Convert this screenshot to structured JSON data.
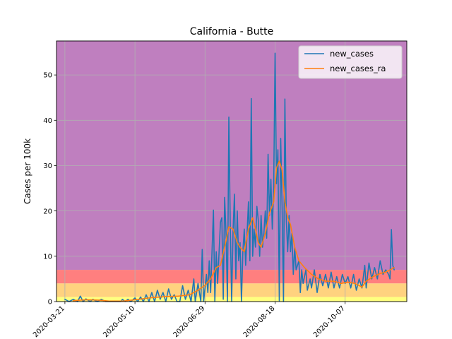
{
  "chart_data": {
    "type": "line",
    "title": "California - Butte",
    "xlabel": "",
    "ylabel": "Cases per 100k",
    "x_start": "2020-03-15",
    "x_end": "2020-11-20",
    "ylim": [
      0,
      57.5
    ],
    "yticks": [
      0,
      10,
      20,
      30,
      40,
      50
    ],
    "xticks": [
      {
        "date": "2020-03-21",
        "label": "2020-03-21"
      },
      {
        "date": "2020-05-10",
        "label": "2020-05-10"
      },
      {
        "date": "2020-06-29",
        "label": "2020-06-29"
      },
      {
        "date": "2020-08-18",
        "label": "2020-08-18"
      },
      {
        "date": "2020-10-07",
        "label": "2020-10-07"
      }
    ],
    "grid": true,
    "legend_position": "top-right",
    "background_bands": [
      {
        "from": 7,
        "to": 57.5,
        "color": "#bf7fbf"
      },
      {
        "from": 4,
        "to": 7,
        "color": "#ff7f7f"
      },
      {
        "from": 1,
        "to": 4,
        "color": "#ffd27f"
      },
      {
        "from": 0,
        "to": 1,
        "color": "#ffff7f"
      }
    ],
    "series": [
      {
        "name": "new_cases",
        "color": "#1f77b4",
        "points": [
          [
            "2020-03-21",
            0.5
          ],
          [
            "2020-03-24",
            0
          ],
          [
            "2020-03-27",
            0.5
          ],
          [
            "2020-03-30",
            0
          ],
          [
            "2020-04-01",
            1.2
          ],
          [
            "2020-04-03",
            0
          ],
          [
            "2020-04-05",
            0.6
          ],
          [
            "2020-04-08",
            0
          ],
          [
            "2020-04-10",
            0.5
          ],
          [
            "2020-04-13",
            0
          ],
          [
            "2020-04-16",
            0.5
          ],
          [
            "2020-04-19",
            0
          ],
          [
            "2020-04-30",
            0
          ],
          [
            "2020-05-01",
            0.5
          ],
          [
            "2020-05-03",
            0
          ],
          [
            "2020-05-05",
            0.5
          ],
          [
            "2020-05-07",
            0
          ],
          [
            "2020-05-10",
            0.8
          ],
          [
            "2020-05-12",
            0
          ],
          [
            "2020-05-14",
            1.0
          ],
          [
            "2020-05-16",
            0
          ],
          [
            "2020-05-18",
            1.5
          ],
          [
            "2020-05-20",
            0
          ],
          [
            "2020-05-22",
            2.0
          ],
          [
            "2020-05-24",
            0
          ],
          [
            "2020-05-26",
            2.5
          ],
          [
            "2020-05-28",
            0.5
          ],
          [
            "2020-05-30",
            2.0
          ],
          [
            "2020-06-01",
            0
          ],
          [
            "2020-06-03",
            2.8
          ],
          [
            "2020-06-05",
            0.5
          ],
          [
            "2020-06-07",
            1.5
          ],
          [
            "2020-06-09",
            0
          ],
          [
            "2020-06-11",
            0
          ],
          [
            "2020-06-13",
            3.5
          ],
          [
            "2020-06-15",
            0.5
          ],
          [
            "2020-06-17",
            2.5
          ],
          [
            "2020-06-19",
            0
          ],
          [
            "2020-06-21",
            5.0
          ],
          [
            "2020-06-22",
            0
          ],
          [
            "2020-06-24",
            4.0
          ],
          [
            "2020-06-26",
            0
          ],
          [
            "2020-06-27",
            11.5
          ],
          [
            "2020-06-28",
            0
          ],
          [
            "2020-06-30",
            6.0
          ],
          [
            "2020-07-01",
            2.0
          ],
          [
            "2020-07-02",
            9.0
          ],
          [
            "2020-07-03",
            2.0
          ],
          [
            "2020-07-05",
            20.2
          ],
          [
            "2020-07-06",
            0
          ],
          [
            "2020-07-07",
            11.0
          ],
          [
            "2020-07-08",
            4.0
          ],
          [
            "2020-07-10",
            17.5
          ],
          [
            "2020-07-11",
            18.5
          ],
          [
            "2020-07-12",
            0.5
          ],
          [
            "2020-07-13",
            23.0
          ],
          [
            "2020-07-14",
            15.0
          ],
          [
            "2020-07-15",
            0
          ],
          [
            "2020-07-16",
            40.7
          ],
          [
            "2020-07-17",
            17.0
          ],
          [
            "2020-07-18",
            0
          ],
          [
            "2020-07-19",
            15.5
          ],
          [
            "2020-07-20",
            23.7
          ],
          [
            "2020-07-21",
            5.0
          ],
          [
            "2020-07-22",
            20.0
          ],
          [
            "2020-07-23",
            9.0
          ],
          [
            "2020-07-24",
            13.0
          ],
          [
            "2020-07-25",
            0
          ],
          [
            "2020-07-26",
            11.0
          ],
          [
            "2020-07-27",
            16.0
          ],
          [
            "2020-07-28",
            8.0
          ],
          [
            "2020-07-30",
            22.0
          ],
          [
            "2020-07-31",
            9.0
          ],
          [
            "2020-08-01",
            44.8
          ],
          [
            "2020-08-02",
            10.0
          ],
          [
            "2020-08-03",
            16.0
          ],
          [
            "2020-08-04",
            12.0
          ],
          [
            "2020-08-05",
            21.0
          ],
          [
            "2020-08-06",
            18.0
          ],
          [
            "2020-08-07",
            10.0
          ],
          [
            "2020-08-08",
            19.0
          ],
          [
            "2020-08-09",
            12.0
          ],
          [
            "2020-08-10",
            15.0
          ],
          [
            "2020-08-11",
            20.0
          ],
          [
            "2020-08-12",
            14.0
          ],
          [
            "2020-08-13",
            32.5
          ],
          [
            "2020-08-14",
            19.0
          ],
          [
            "2020-08-15",
            27.0
          ],
          [
            "2020-08-16",
            16.0
          ],
          [
            "2020-08-17",
            25.0
          ],
          [
            "2020-08-18",
            54.8
          ],
          [
            "2020-08-19",
            26.0
          ],
          [
            "2020-08-20",
            33.5
          ],
          [
            "2020-08-21",
            0.2
          ],
          [
            "2020-08-22",
            36.0
          ],
          [
            "2020-08-23",
            21.0
          ],
          [
            "2020-08-24",
            0
          ],
          [
            "2020-08-25",
            44.7
          ],
          [
            "2020-08-26",
            18.0
          ],
          [
            "2020-08-27",
            11.0
          ],
          [
            "2020-08-28",
            19.0
          ],
          [
            "2020-08-29",
            11.0
          ],
          [
            "2020-08-30",
            15.0
          ],
          [
            "2020-08-31",
            6.0
          ],
          [
            "2020-09-01",
            12.0
          ],
          [
            "2020-09-02",
            7.0
          ],
          [
            "2020-09-04",
            9.0
          ],
          [
            "2020-09-05",
            2.0
          ],
          [
            "2020-09-06",
            7.0
          ],
          [
            "2020-09-07",
            4.0
          ],
          [
            "2020-09-09",
            7.0
          ],
          [
            "2020-09-10",
            2.5
          ],
          [
            "2020-09-12",
            5.0
          ],
          [
            "2020-09-13",
            3.0
          ],
          [
            "2020-09-15",
            7.0
          ],
          [
            "2020-09-17",
            2.0
          ],
          [
            "2020-09-19",
            6.0
          ],
          [
            "2020-09-21",
            3.5
          ],
          [
            "2020-09-23",
            6.0
          ],
          [
            "2020-09-25",
            3.0
          ],
          [
            "2020-09-27",
            6.5
          ],
          [
            "2020-09-29",
            3.0
          ],
          [
            "2020-10-01",
            5.5
          ],
          [
            "2020-10-03",
            3.0
          ],
          [
            "2020-10-05",
            6.0
          ],
          [
            "2020-10-07",
            4.0
          ],
          [
            "2020-10-09",
            5.5
          ],
          [
            "2020-10-11",
            3.0
          ],
          [
            "2020-10-13",
            6.0
          ],
          [
            "2020-10-15",
            2.5
          ],
          [
            "2020-10-17",
            5.0
          ],
          [
            "2020-10-19",
            3.0
          ],
          [
            "2020-10-21",
            8.0
          ],
          [
            "2020-10-22",
            3.0
          ],
          [
            "2020-10-24",
            8.5
          ],
          [
            "2020-10-26",
            5.0
          ],
          [
            "2020-10-28",
            7.5
          ],
          [
            "2020-10-30",
            5.0
          ],
          [
            "2020-11-01",
            9.0
          ],
          [
            "2020-11-03",
            6.0
          ],
          [
            "2020-11-05",
            7.0
          ],
          [
            "2020-11-07",
            6.0
          ],
          [
            "2020-11-08",
            5.0
          ],
          [
            "2020-11-09",
            15.9
          ],
          [
            "2020-11-10",
            8.0
          ],
          [
            "2020-11-11",
            7.0
          ]
        ]
      },
      {
        "name": "new_cases_ra",
        "color": "#ff7f0e",
        "points": [
          [
            "2020-03-27",
            0.2
          ],
          [
            "2020-04-05",
            0.4
          ],
          [
            "2020-04-15",
            0.3
          ],
          [
            "2020-04-22",
            0.1
          ],
          [
            "2020-05-01",
            0.1
          ],
          [
            "2020-05-10",
            0.4
          ],
          [
            "2020-05-20",
            0.8
          ],
          [
            "2020-06-01",
            1.1
          ],
          [
            "2020-06-10",
            1.2
          ],
          [
            "2020-06-18",
            1.5
          ],
          [
            "2020-06-24",
            2.5
          ],
          [
            "2020-06-29",
            3.6
          ],
          [
            "2020-07-03",
            5.0
          ],
          [
            "2020-07-07",
            7.5
          ],
          [
            "2020-07-10",
            8.0
          ],
          [
            "2020-07-13",
            12.0
          ],
          [
            "2020-07-16",
            16.5
          ],
          [
            "2020-07-19",
            16.0
          ],
          [
            "2020-07-22",
            13.0
          ],
          [
            "2020-07-24",
            12.0
          ],
          [
            "2020-07-27",
            11.0
          ],
          [
            "2020-07-30",
            16.0
          ],
          [
            "2020-08-02",
            18.5
          ],
          [
            "2020-08-04",
            16.0
          ],
          [
            "2020-08-06",
            13.0
          ],
          [
            "2020-08-08",
            12.0
          ],
          [
            "2020-08-11",
            15.0
          ],
          [
            "2020-08-14",
            19.5
          ],
          [
            "2020-08-17",
            22.0
          ],
          [
            "2020-08-19",
            29.5
          ],
          [
            "2020-08-21",
            31.0
          ],
          [
            "2020-08-23",
            29.0
          ],
          [
            "2020-08-25",
            22.0
          ],
          [
            "2020-08-27",
            18.5
          ],
          [
            "2020-08-29",
            17.0
          ],
          [
            "2020-09-01",
            12.0
          ],
          [
            "2020-09-04",
            9.0
          ],
          [
            "2020-09-08",
            7.5
          ],
          [
            "2020-09-13",
            6.0
          ],
          [
            "2020-09-18",
            5.0
          ],
          [
            "2020-09-23",
            4.5
          ],
          [
            "2020-09-29",
            4.5
          ],
          [
            "2020-10-04",
            4.0
          ],
          [
            "2020-10-09",
            4.3
          ],
          [
            "2020-10-14",
            4.0
          ],
          [
            "2020-10-19",
            3.2
          ],
          [
            "2020-10-22",
            4.5
          ],
          [
            "2020-10-27",
            5.5
          ],
          [
            "2020-11-01",
            6.2
          ],
          [
            "2020-11-05",
            6.5
          ],
          [
            "2020-11-08",
            7.0
          ],
          [
            "2020-11-11",
            7.5
          ]
        ]
      }
    ]
  }
}
